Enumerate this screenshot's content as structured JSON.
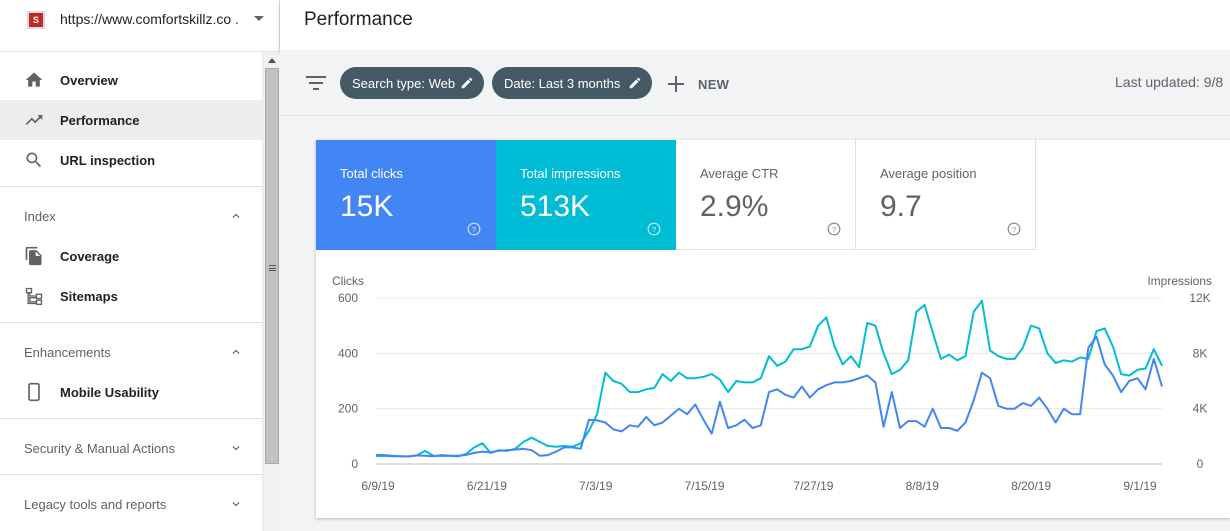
{
  "property": {
    "url": "https://www.comfortskillz.co ...",
    "favicon_letter": "S"
  },
  "nav": {
    "overview": "Overview",
    "performance": "Performance",
    "url_inspection": "URL inspection",
    "index_header": "Index",
    "coverage": "Coverage",
    "sitemaps": "Sitemaps",
    "enhancements_header": "Enhancements",
    "mobile_usability": "Mobile Usability",
    "security_header": "Security & Manual Actions",
    "legacy_header": "Legacy tools and reports"
  },
  "header": {
    "title": "Performance"
  },
  "filters": {
    "search_type": "Search type: Web",
    "date": "Date: Last 3 months",
    "new_label": "NEW",
    "last_updated": "Last updated: 9/8"
  },
  "metrics": {
    "clicks": {
      "label": "Total clicks",
      "value": "15K"
    },
    "impressions": {
      "label": "Total impressions",
      "value": "513K"
    },
    "ctr": {
      "label": "Average CTR",
      "value": "2.9%"
    },
    "position": {
      "label": "Average position",
      "value": "9.7"
    }
  },
  "colors": {
    "clicks": "#4285f4",
    "impressions": "#00bcd4",
    "chip": "#455a64"
  },
  "chart_data": {
    "type": "line",
    "left_axis_label": "Clicks",
    "right_axis_label": "Impressions",
    "left_ticks": [
      "600",
      "400",
      "200",
      "0"
    ],
    "right_ticks": [
      "12K",
      "8K",
      "4K",
      "0"
    ],
    "x_ticks": [
      "6/9/19",
      "6/21/19",
      "7/3/19",
      "7/15/19",
      "7/27/19",
      "8/8/19",
      "8/20/19",
      "9/1/19"
    ],
    "left_range": [
      0,
      600
    ],
    "right_range": [
      0,
      12000
    ],
    "grid": true,
    "series": [
      {
        "name": "Clicks",
        "axis": "left",
        "values": [
          29,
          30,
          28,
          28,
          27,
          31,
          30,
          28,
          32,
          30,
          30,
          33,
          40,
          45,
          42,
          48,
          50,
          52,
          55,
          50,
          30,
          32,
          45,
          60,
          60,
          55,
          160,
          158,
          150,
          125,
          118,
          140,
          135,
          170,
          140,
          150,
          175,
          200,
          180,
          215,
          160,
          110,
          225,
          130,
          140,
          160,
          130,
          140,
          260,
          270,
          250,
          240,
          280,
          240,
          270,
          285,
          295,
          295,
          300,
          310,
          320,
          295,
          135,
          260,
          130,
          155,
          155,
          135,
          200,
          130,
          130,
          120,
          150,
          230,
          330,
          310,
          210,
          200,
          200,
          220,
          210,
          240,
          200,
          150,
          200,
          180,
          180,
          420,
          460,
          360,
          320,
          260,
          300,
          310,
          270,
          380,
          280
        ]
      },
      {
        "name": "Impressions",
        "axis": "right",
        "values": [
          650,
          650,
          600,
          550,
          550,
          620,
          950,
          600,
          580,
          600,
          550,
          720,
          1200,
          1500,
          800,
          1000,
          950,
          1100,
          1600,
          1900,
          1600,
          1300,
          1250,
          1300,
          1250,
          1500,
          2400,
          3600,
          6600,
          6000,
          5800,
          5200,
          5200,
          5400,
          5500,
          6500,
          6000,
          6600,
          6200,
          6200,
          6300,
          6500,
          6100,
          5200,
          6000,
          5900,
          5900,
          6200,
          7800,
          7100,
          7400,
          8300,
          8300,
          8500,
          10000,
          10600,
          8500,
          7200,
          7800,
          7000,
          10200,
          10000,
          8000,
          6500,
          6800,
          7500,
          11000,
          11500,
          9500,
          7600,
          7900,
          7500,
          7800,
          11000,
          11800,
          8200,
          7800,
          7600,
          7600,
          8400,
          10000,
          9800,
          8000,
          7300,
          7500,
          7400,
          7700,
          7600,
          9600,
          9800,
          8500,
          6500,
          6400,
          6800,
          6900,
          8300,
          7100
        ]
      }
    ]
  }
}
